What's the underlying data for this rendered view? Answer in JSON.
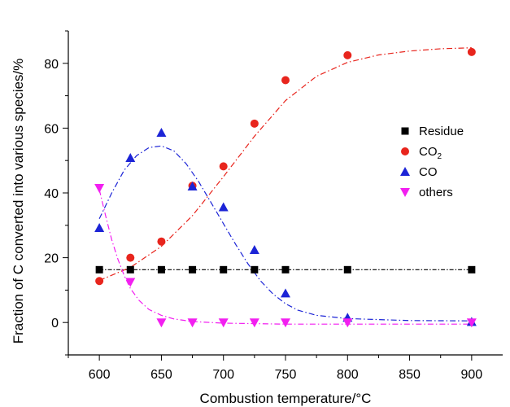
{
  "chart_data": {
    "type": "scatter",
    "title": "",
    "xlabel": "Combustion temperature/°C",
    "ylabel": "Fraction of C converted into various species/%",
    "xlim": [
      575,
      925
    ],
    "ylim": [
      -10,
      90
    ],
    "x_ticks": [
      600,
      650,
      700,
      750,
      800,
      850,
      900
    ],
    "y_ticks": [
      0,
      20,
      40,
      60,
      80
    ],
    "grid": false,
    "legend_position": "right",
    "series": [
      {
        "name": "Residue",
        "marker": "square",
        "color": "#000000",
        "points": [
          [
            600,
            16.3
          ],
          [
            625,
            16.3
          ],
          [
            650,
            16.3
          ],
          [
            675,
            16.3
          ],
          [
            700,
            16.3
          ],
          [
            725,
            16.3
          ],
          [
            750,
            16.3
          ],
          [
            800,
            16.3
          ],
          [
            900,
            16.3
          ]
        ],
        "fit": [
          [
            600,
            16.3
          ],
          [
            900,
            16.3
          ]
        ]
      },
      {
        "name": "CO",
        "name_sub": "2",
        "marker": "circle",
        "color": "#e8251d",
        "points": [
          [
            600,
            12.8
          ],
          [
            625,
            20
          ],
          [
            650,
            25
          ],
          [
            675,
            42.2
          ],
          [
            700,
            48.2
          ],
          [
            725,
            61.4
          ],
          [
            750,
            74.8
          ],
          [
            800,
            82.5
          ],
          [
            900,
            83.5
          ]
        ],
        "fit": [
          [
            600,
            13
          ],
          [
            625,
            17
          ],
          [
            650,
            23.5
          ],
          [
            675,
            33
          ],
          [
            700,
            45
          ],
          [
            725,
            57.5
          ],
          [
            750,
            68.5
          ],
          [
            775,
            76
          ],
          [
            800,
            80.3
          ],
          [
            825,
            82.6
          ],
          [
            850,
            83.8
          ],
          [
            875,
            84.5
          ],
          [
            900,
            84.8
          ]
        ]
      },
      {
        "name": "CO",
        "marker": "triangle-up",
        "color": "#1c24d6",
        "points": [
          [
            600,
            29.2
          ],
          [
            625,
            50.8
          ],
          [
            650,
            58.6
          ],
          [
            675,
            42
          ],
          [
            700,
            35.6
          ],
          [
            725,
            22.4
          ],
          [
            750,
            9
          ],
          [
            800,
            1.5
          ],
          [
            900,
            0.2
          ]
        ],
        "fit": [
          [
            600,
            32
          ],
          [
            610,
            40
          ],
          [
            620,
            47
          ],
          [
            630,
            51.5
          ],
          [
            640,
            54
          ],
          [
            650,
            54.5
          ],
          [
            660,
            53
          ],
          [
            670,
            49
          ],
          [
            680,
            43.5
          ],
          [
            690,
            37
          ],
          [
            700,
            30.5
          ],
          [
            710,
            24
          ],
          [
            720,
            18
          ],
          [
            730,
            12.8
          ],
          [
            740,
            8.8
          ],
          [
            750,
            5.8
          ],
          [
            760,
            3.8
          ],
          [
            775,
            2.2
          ],
          [
            800,
            1.2
          ],
          [
            850,
            0.6
          ],
          [
            900,
            0.5
          ]
        ]
      },
      {
        "name": "others",
        "marker": "triangle-down",
        "color": "#f21ff0",
        "points": [
          [
            600,
            41.5
          ],
          [
            625,
            12.5
          ],
          [
            650,
            0
          ],
          [
            675,
            0
          ],
          [
            700,
            0
          ],
          [
            725,
            0
          ],
          [
            750,
            0
          ],
          [
            800,
            0
          ],
          [
            900,
            0
          ]
        ],
        "fit": [
          [
            600,
            41
          ],
          [
            605,
            33
          ],
          [
            610,
            25.5
          ],
          [
            615,
            19.5
          ],
          [
            620,
            14.5
          ],
          [
            625,
            10.5
          ],
          [
            632,
            6.8
          ],
          [
            640,
            4
          ],
          [
            650,
            2.2
          ],
          [
            660,
            1.1
          ],
          [
            675,
            0.3
          ],
          [
            700,
            -0.2
          ],
          [
            750,
            -0.5
          ],
          [
            800,
            -0.5
          ],
          [
            900,
            -0.5
          ]
        ]
      }
    ]
  }
}
